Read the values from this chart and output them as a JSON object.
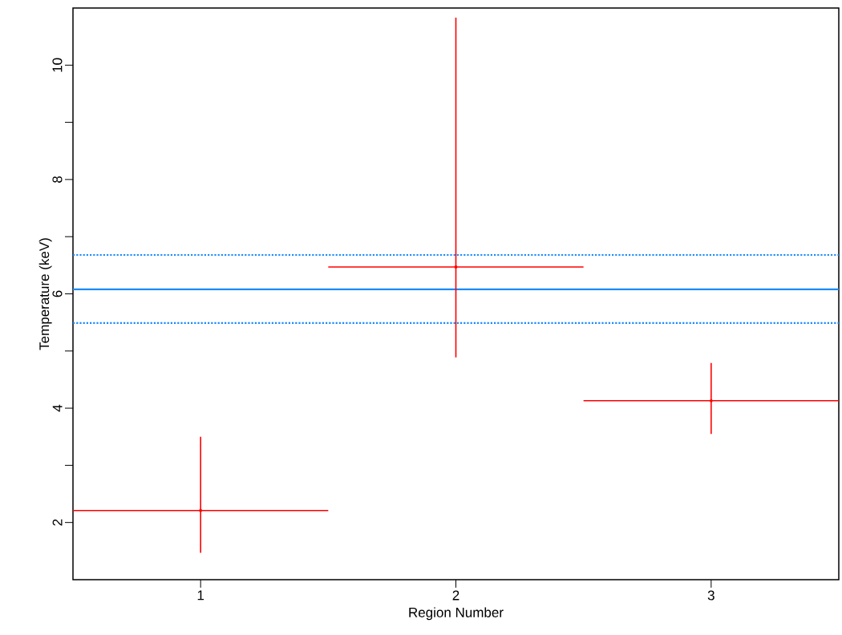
{
  "chart_data": {
    "type": "scatter",
    "xlabel": "Region Number",
    "ylabel": "Temperature (keV)",
    "xlim": [
      0.5,
      3.5
    ],
    "ylim": [
      1,
      11
    ],
    "xticks": [
      1,
      2,
      3
    ],
    "yticks": [
      2,
      {
        "value": 3,
        "label": null
      },
      4,
      {
        "value": 5,
        "label": null
      },
      6,
      {
        "value": 7,
        "label": null
      },
      8,
      {
        "value": 9,
        "label": null
      },
      10
    ],
    "x": [
      1,
      2,
      3
    ],
    "series": [
      {
        "color": "#ff0000",
        "values": [
          2.21,
          6.47,
          4.13
        ],
        "errors": [
          [
            1.47,
            3.5
          ],
          [
            4.89,
            10.83
          ],
          [
            3.55,
            4.79
          ]
        ],
        "xerrors": [
          [
            0.5,
            1.5
          ],
          [
            1.5,
            2.5
          ],
          [
            2.5,
            3.5
          ]
        ]
      }
    ],
    "ref_lines": [
      {
        "axis": "y",
        "value": 6.08,
        "color": "#1a8cff",
        "line_style": "solid"
      },
      {
        "axis": "y",
        "value": 6.68,
        "color": "#1a8cff",
        "line_style": "dotted"
      },
      {
        "axis": "y",
        "value": 5.49,
        "color": "#1a8cff",
        "line_style": "dotted"
      }
    ],
    "grid": false
  }
}
